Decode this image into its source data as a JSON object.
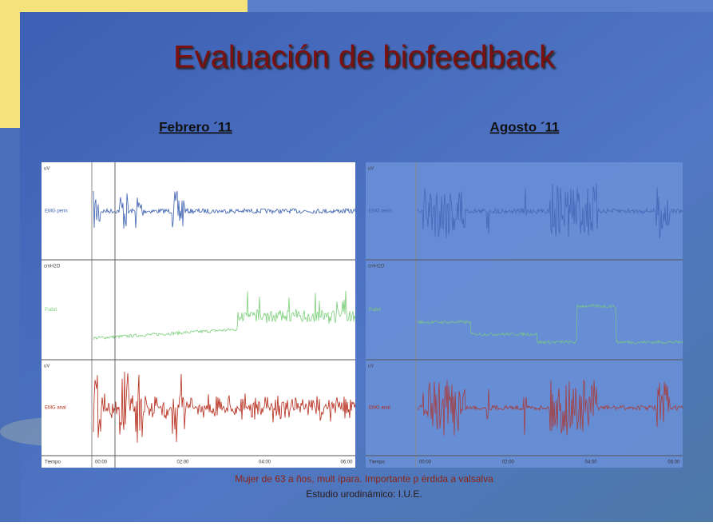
{
  "title": "Evaluación de biofeedback",
  "panels": [
    {
      "heading": "Febrero ´11",
      "channels": [
        {
          "label": "EMG perin",
          "unit": "uV"
        },
        {
          "label": "P.abd",
          "unit": "cmH2O"
        },
        {
          "label": "EMG anal",
          "unit": "uV"
        }
      ],
      "time_label": "Tiempo",
      "time_ticks": [
        "00:00",
        "02:00",
        "04:00",
        "06:00"
      ]
    },
    {
      "heading": "Agosto ´11",
      "channels": [
        {
          "label": "EMG perin",
          "unit": "uV"
        },
        {
          "label": "P.abd",
          "unit": "cmH2O"
        },
        {
          "label": "EMG anal",
          "unit": "uV"
        }
      ],
      "time_label": "Tiempo",
      "time_ticks": [
        "00:00",
        "02:00",
        "04:00",
        "06:00"
      ]
    }
  ],
  "caption": [
    "Mujer de 63 a ños, mult ípara. Importante p érdida a valsalva",
    "Estudio urodinámico: I.U.E."
  ]
}
